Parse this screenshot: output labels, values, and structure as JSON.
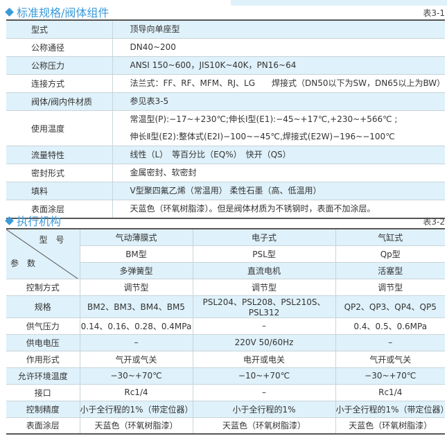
{
  "section1": {
    "title": "标准规格/阀体组件",
    "table_no": "表3-1",
    "rows": [
      {
        "label": "型式",
        "value": [
          "顶导向单座型"
        ]
      },
      {
        "label": "公称通径",
        "value": [
          "DN40~200"
        ]
      },
      {
        "label": "公称压力",
        "value": [
          "ANSI 150~600，JIS10K~40K，PN16~64"
        ]
      },
      {
        "label": "连接方式",
        "value": [
          "法兰式：FF、RF、MFM、RJ、LG　　焊接式（DN50以下为SW，DN65以上为BW）"
        ]
      },
      {
        "label": "阀体/阀内件材质",
        "value": [
          "参见表3-5"
        ]
      },
      {
        "label": "使用温度",
        "value": [
          "常温型(P):−17~+230℃;伸长Ⅰ型(E1):−45~+17℃,+230~+566℃ ;",
          "伸长Ⅱ型(E2):整体式(E2I)−100~−45℃,焊接式(E2W)−196~−100℃"
        ]
      },
      {
        "label": "流量特性",
        "value": [
          "线性（L）　等百分比（EQ%）　快开（QS）"
        ]
      },
      {
        "label": "密封形式",
        "value": [
          "金属密封、软密封"
        ]
      },
      {
        "label": "填料",
        "value": [
          "V型聚四氟乙烯（常温用） 柔性石墨（高、低温用）"
        ]
      },
      {
        "label": "表面涂层",
        "value": [
          "天蓝色（环氧树脂漆）。但是阀体材质为不锈钢时，表面不加涂层。"
        ]
      }
    ]
  },
  "section2": {
    "title": "执行机构",
    "table_no": "表3-2",
    "corner": {
      "top": "型号",
      "bottom": "参数"
    },
    "header_rows": [
      [
        "气动薄膜式",
        "电子式",
        "气缸式"
      ],
      [
        "BM型",
        "PSL型",
        "Qp型"
      ],
      [
        "多弹簧型",
        "直流电机",
        "活塞型"
      ]
    ],
    "rows": [
      {
        "label": "控制方式",
        "values": [
          "调节型",
          "调节型",
          "调节型"
        ]
      },
      {
        "label": "规格",
        "values": [
          "BM2、BM3、BM4、BM5",
          "PSL204、PSL208、PSL210S、PSL312",
          "QP2、QP3、QP4、QP5"
        ]
      },
      {
        "label": "供气压力",
        "values": [
          "0.14、0.16、0.28、0.4MPa",
          "–",
          "0.4、0.5、0.6MPa"
        ]
      },
      {
        "label": "供电电压",
        "values": [
          "–",
          "220V  50/60Hz",
          "–"
        ]
      },
      {
        "label": "作用形式",
        "values": [
          "气开或气关",
          "电开或电关",
          "气开或气关"
        ]
      },
      {
        "label": "允许环境温度",
        "values": [
          "−30~+70℃",
          "−10~+70℃",
          "−30~+70℃"
        ]
      },
      {
        "label": "接口",
        "values": [
          "Rc1/4",
          "–",
          "Rc1/4"
        ]
      },
      {
        "label": "控制精度",
        "values": [
          "小于全行程的1%（带定位器）",
          "小于全行程的1%",
          "小于全行程的1%（带定位器）"
        ]
      },
      {
        "label": "表面涂层",
        "values": [
          "天蓝色（环氧树脂漆）",
          "天蓝色（环氧树脂漆）",
          "天蓝色（环氧树脂漆）"
        ]
      }
    ]
  },
  "colors": {
    "accent": "#3a9ad9",
    "row_tint": "#dff1fa"
  }
}
